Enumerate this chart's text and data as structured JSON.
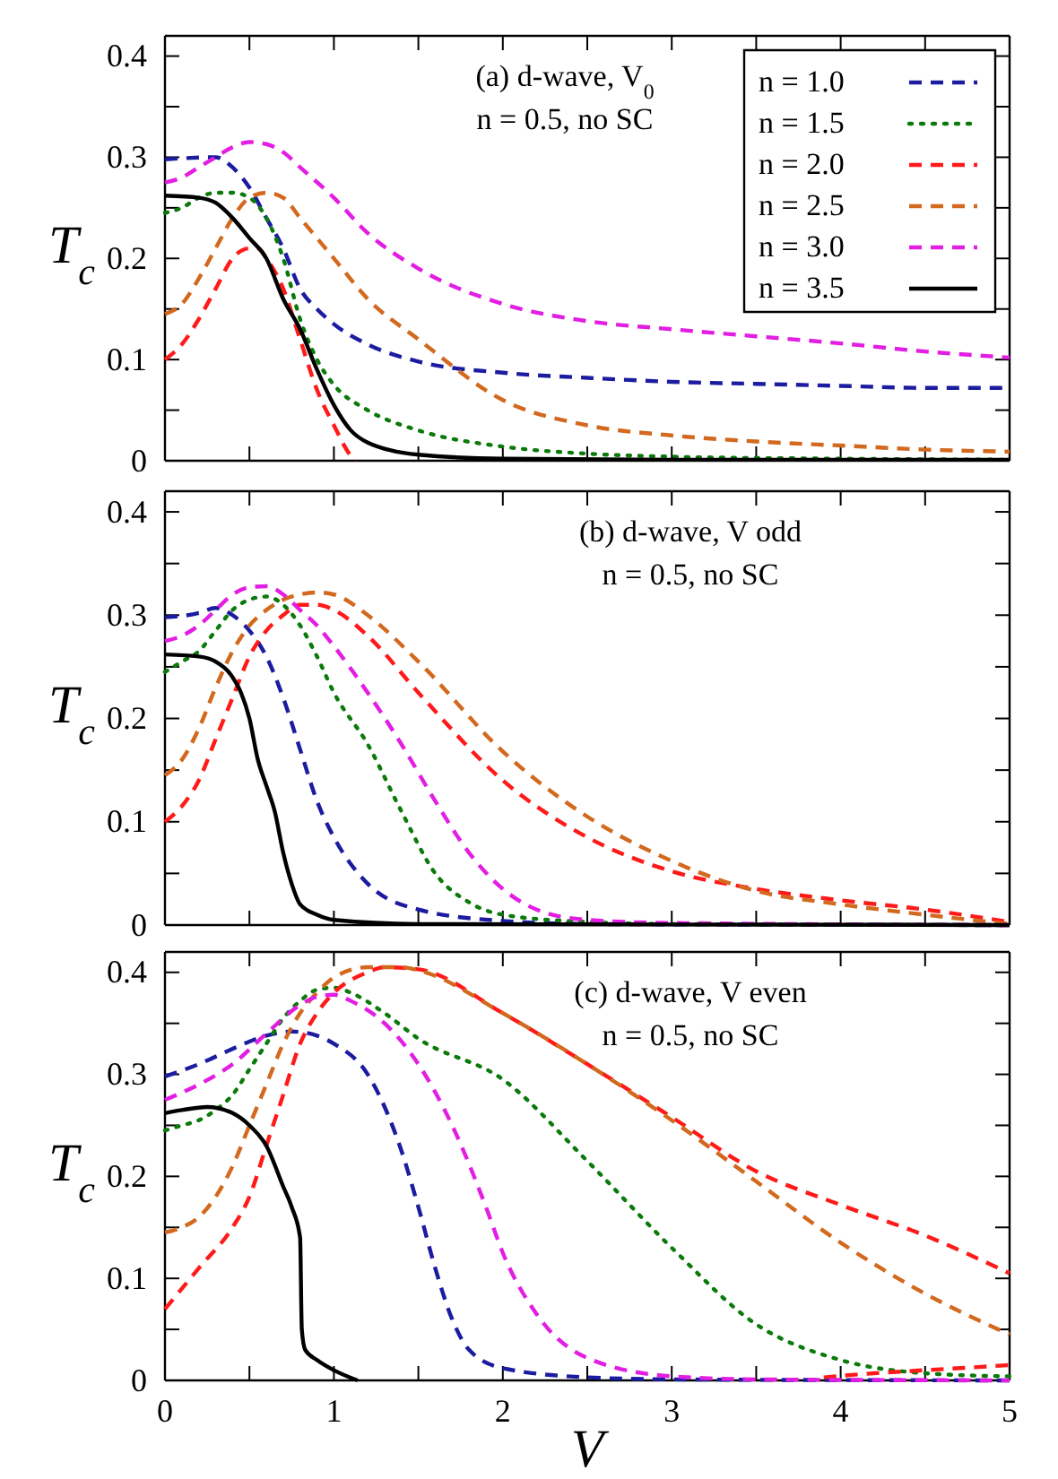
{
  "chart_data": [
    {
      "type": "line",
      "ylabel": "T$_{c}$",
      "annotations": [
        "(a) d-wave, V$_{0}$",
        "n = 0.5, no SC"
      ],
      "legend": "top right",
      "tick_labels": "y",
      "xlim": [
        0,
        5
      ],
      "ylim": [
        0,
        0.42
      ],
      "xticks": [
        {
          "value": 0,
          "label": null
        },
        {
          "value": 0.5,
          "label": null
        },
        {
          "value": 1,
          "label": null
        },
        {
          "value": 1.5,
          "label": null
        },
        {
          "value": 2,
          "label": null
        },
        {
          "value": 2.5,
          "label": null
        },
        {
          "value": 3,
          "label": null
        },
        {
          "value": 3.5,
          "label": null
        },
        {
          "value": 4,
          "label": null
        },
        {
          "value": 4.5,
          "label": null
        },
        {
          "value": 5,
          "label": null
        }
      ],
      "yticks": [
        0,
        {
          "value": 0.05,
          "label": null
        },
        0.1,
        {
          "value": 0.15,
          "label": null
        },
        0.2,
        {
          "value": 0.25,
          "label": null
        },
        0.3,
        {
          "value": 0.35,
          "label": null
        },
        0.4
      ],
      "series": [
        {
          "name": "n = 1.0",
          "color": "#1c1ca0",
          "line_style": "dashed",
          "x": [
            0,
            0.3,
            0.4,
            0.5,
            0.6,
            0.7,
            0.8,
            0.9,
            1.0,
            1.2,
            1.5,
            2,
            2.5,
            3,
            3.5,
            4,
            4.5,
            5
          ],
          "values": [
            0.298,
            0.3,
            0.29,
            0.27,
            0.24,
            0.21,
            0.17,
            0.15,
            0.135,
            0.115,
            0.098,
            0.087,
            0.082,
            0.078,
            0.076,
            0.074,
            0.072,
            0.072
          ]
        },
        {
          "name": "n = 1.5",
          "color": "#0a7a0a",
          "line_style": "dotted",
          "x": [
            0,
            0.1,
            0.2,
            0.3,
            0.4,
            0.5,
            0.6,
            0.7,
            0.8,
            0.9,
            1.0,
            1.2,
            1.5,
            2,
            2.5,
            3,
            4,
            5
          ],
          "values": [
            0.245,
            0.25,
            0.26,
            0.265,
            0.265,
            0.26,
            0.24,
            0.2,
            0.14,
            0.1,
            0.075,
            0.05,
            0.03,
            0.014,
            0.007,
            0.004,
            0.002,
            0.001
          ]
        },
        {
          "name": "n = 2.0",
          "color": "#ff1a1a",
          "line_style": "dashed",
          "x": [
            0,
            0.1,
            0.2,
            0.3,
            0.4,
            0.5,
            0.55,
            0.6,
            0.7,
            0.8,
            0.9,
            1.0,
            1.1,
            1.13
          ],
          "values": [
            0.1,
            0.115,
            0.14,
            0.17,
            0.2,
            0.21,
            0.21,
            0.2,
            0.17,
            0.12,
            0.07,
            0.035,
            0.005,
            0
          ]
        },
        {
          "name": "n = 2.5",
          "color": "#d2691e",
          "line_style": "dashed",
          "x": [
            0,
            0.1,
            0.2,
            0.3,
            0.4,
            0.5,
            0.6,
            0.7,
            0.8,
            1.0,
            1.2,
            1.5,
            2,
            2.5,
            3,
            3.5,
            4,
            4.5,
            5
          ],
          "values": [
            0.145,
            0.155,
            0.18,
            0.21,
            0.24,
            0.26,
            0.265,
            0.26,
            0.24,
            0.2,
            0.16,
            0.12,
            0.06,
            0.035,
            0.025,
            0.019,
            0.015,
            0.011,
            0.009
          ]
        },
        {
          "name": "n = 3.0",
          "color": "#e21ee2",
          "line_style": "dashed",
          "x": [
            0,
            0.1,
            0.2,
            0.3,
            0.4,
            0.5,
            0.6,
            0.7,
            0.8,
            1.0,
            1.2,
            1.5,
            2,
            2.5,
            3,
            3.5,
            4,
            4.5,
            5
          ],
          "values": [
            0.275,
            0.28,
            0.29,
            0.3,
            0.31,
            0.315,
            0.313,
            0.305,
            0.29,
            0.26,
            0.225,
            0.19,
            0.155,
            0.138,
            0.13,
            0.123,
            0.116,
            0.108,
            0.102
          ]
        },
        {
          "name": "n = 3.5",
          "color": "#000000",
          "line_style": "solid",
          "x": [
            0,
            0.2,
            0.3,
            0.4,
            0.5,
            0.6,
            0.7,
            0.8,
            0.9,
            1.0,
            1.1,
            1.2,
            1.5,
            2,
            3,
            5
          ],
          "values": [
            0.262,
            0.26,
            0.255,
            0.24,
            0.22,
            0.2,
            0.16,
            0.13,
            0.09,
            0.055,
            0.03,
            0.018,
            0.006,
            0.002,
            0.001,
            0.001
          ]
        }
      ]
    },
    {
      "type": "line",
      "ylabel": "T$_{c}$",
      "annotations": [
        "(b) d-wave, V odd",
        "n = 0.5, no SC"
      ],
      "tick_labels": "y",
      "xlim": [
        0,
        5
      ],
      "ylim": [
        0,
        0.42
      ],
      "xticks": [
        {
          "value": 0,
          "label": null
        },
        {
          "value": 0.5,
          "label": null
        },
        {
          "value": 1,
          "label": null
        },
        {
          "value": 1.5,
          "label": null
        },
        {
          "value": 2,
          "label": null
        },
        {
          "value": 2.5,
          "label": null
        },
        {
          "value": 3,
          "label": null
        },
        {
          "value": 3.5,
          "label": null
        },
        {
          "value": 4,
          "label": null
        },
        {
          "value": 4.5,
          "label": null
        },
        {
          "value": 5,
          "label": null
        }
      ],
      "yticks": [
        0,
        {
          "value": 0.05,
          "label": null
        },
        0.1,
        {
          "value": 0.15,
          "label": null
        },
        0.2,
        {
          "value": 0.25,
          "label": null
        },
        0.3,
        {
          "value": 0.35,
          "label": null
        },
        0.4
      ],
      "series": [
        {
          "color": "#1c1ca0",
          "line_style": "dashed",
          "x": [
            0,
            0.2,
            0.3,
            0.4,
            0.5,
            0.6,
            0.7,
            0.8,
            0.9,
            1.0,
            1.2,
            1.5,
            2,
            2.5,
            5
          ],
          "values": [
            0.298,
            0.302,
            0.307,
            0.3,
            0.285,
            0.26,
            0.22,
            0.17,
            0.12,
            0.085,
            0.04,
            0.015,
            0.004,
            0.001,
            0
          ]
        },
        {
          "color": "#0a7a0a",
          "line_style": "dotted",
          "x": [
            0,
            0.1,
            0.2,
            0.3,
            0.4,
            0.5,
            0.6,
            0.7,
            0.8,
            0.9,
            1.0,
            1.2,
            1.4,
            1.6,
            1.8,
            2,
            2.5,
            3,
            5
          ],
          "values": [
            0.245,
            0.255,
            0.265,
            0.285,
            0.305,
            0.315,
            0.318,
            0.31,
            0.29,
            0.26,
            0.225,
            0.175,
            0.11,
            0.05,
            0.022,
            0.01,
            0.003,
            0.001,
            0
          ]
        },
        {
          "color": "#ff1a1a",
          "line_style": "dashed",
          "x": [
            0,
            0.1,
            0.2,
            0.3,
            0.4,
            0.5,
            0.6,
            0.7,
            0.8,
            0.9,
            1.0,
            1.2,
            1.5,
            2,
            2.5,
            3,
            3.5,
            4,
            4.5,
            5
          ],
          "values": [
            0.1,
            0.115,
            0.14,
            0.18,
            0.22,
            0.26,
            0.285,
            0.3,
            0.31,
            0.31,
            0.305,
            0.28,
            0.225,
            0.14,
            0.085,
            0.052,
            0.035,
            0.024,
            0.015,
            0.003
          ]
        },
        {
          "color": "#d2691e",
          "line_style": "dashed",
          "x": [
            0,
            0.1,
            0.2,
            0.3,
            0.4,
            0.5,
            0.6,
            0.7,
            0.8,
            0.9,
            1.0,
            1.2,
            1.5,
            2,
            2.5,
            3,
            3.5,
            4,
            4.5,
            5
          ],
          "values": [
            0.145,
            0.16,
            0.19,
            0.23,
            0.265,
            0.29,
            0.305,
            0.315,
            0.32,
            0.322,
            0.32,
            0.3,
            0.255,
            0.168,
            0.105,
            0.062,
            0.033,
            0.02,
            0.01,
            0.001
          ]
        },
        {
          "color": "#e21ee2",
          "line_style": "dashed",
          "x": [
            0,
            0.1,
            0.2,
            0.3,
            0.4,
            0.5,
            0.6,
            0.7,
            0.8,
            0.9,
            1.0,
            1.2,
            1.4,
            1.6,
            1.8,
            2.0,
            2.2,
            2.5,
            3,
            5
          ],
          "values": [
            0.275,
            0.28,
            0.29,
            0.305,
            0.32,
            0.327,
            0.328,
            0.32,
            0.305,
            0.29,
            0.27,
            0.225,
            0.175,
            0.12,
            0.07,
            0.035,
            0.015,
            0.005,
            0.002,
            0
          ]
        },
        {
          "color": "#000000",
          "line_style": "solid",
          "x": [
            0,
            0.2,
            0.3,
            0.4,
            0.45,
            0.5,
            0.55,
            0.6,
            0.65,
            0.7,
            0.75,
            0.8,
            0.9,
            1.0,
            1.5,
            5
          ],
          "values": [
            0.262,
            0.26,
            0.255,
            0.24,
            0.225,
            0.2,
            0.16,
            0.135,
            0.11,
            0.07,
            0.04,
            0.02,
            0.01,
            0.005,
            0.001,
            0
          ]
        }
      ]
    },
    {
      "type": "line",
      "xlabel": "V",
      "ylabel": "T$_{c}$",
      "annotations": [
        "(c) d-wave, V even",
        "n = 0.5, no SC"
      ],
      "xlim": [
        0,
        5
      ],
      "ylim": [
        0,
        0.42
      ],
      "xticks": [
        0,
        {
          "value": 0.5,
          "label": null
        },
        1,
        {
          "value": 1.5,
          "label": null
        },
        2,
        {
          "value": 2.5,
          "label": null
        },
        3,
        {
          "value": 3.5,
          "label": null
        },
        4,
        {
          "value": 4.5,
          "label": null
        },
        5
      ],
      "yticks": [
        0,
        {
          "value": 0.05,
          "label": null
        },
        0.1,
        {
          "value": 0.15,
          "label": null
        },
        0.2,
        {
          "value": 0.25,
          "label": null
        },
        0.3,
        {
          "value": 0.35,
          "label": null
        },
        0.4
      ],
      "series": [
        {
          "color": "#1c1ca0",
          "line_style": "dashed",
          "x": [
            0,
            0.2,
            0.4,
            0.6,
            0.75,
            0.9,
            1.0,
            1.2,
            1.4,
            1.5,
            1.6,
            1.7,
            1.8,
            2,
            2.5,
            3,
            5
          ],
          "values": [
            0.298,
            0.31,
            0.325,
            0.338,
            0.342,
            0.338,
            0.33,
            0.3,
            0.225,
            0.17,
            0.11,
            0.06,
            0.03,
            0.012,
            0.003,
            0.001,
            0
          ]
        },
        {
          "color": "#0a7a0a",
          "line_style": "dotted",
          "x": [
            0,
            0.1,
            0.2,
            0.3,
            0.4,
            0.5,
            0.6,
            0.7,
            0.8,
            0.9,
            1.0,
            1.1,
            1.3,
            1.5,
            2,
            2.5,
            3,
            3.5,
            4,
            4.5,
            5
          ],
          "values": [
            0.245,
            0.25,
            0.255,
            0.265,
            0.28,
            0.305,
            0.33,
            0.355,
            0.372,
            0.383,
            0.385,
            0.38,
            0.36,
            0.335,
            0.295,
            0.215,
            0.13,
            0.055,
            0.02,
            0.007,
            0.004
          ]
        },
        {
          "color": "#ff1a1a",
          "line_style": "dashed",
          "x": [
            0,
            0.2,
            0.4,
            0.5,
            0.6,
            0.7,
            0.8,
            0.9,
            1.0,
            1.2,
            1.3,
            1.5,
            2,
            2.5,
            3,
            3.5,
            4,
            4.5,
            5
          ],
          "values": [
            0.07,
            0.11,
            0.15,
            0.18,
            0.23,
            0.28,
            0.33,
            0.36,
            0.38,
            0.4,
            0.405,
            0.403,
            0.36,
            0.31,
            0.258,
            0.205,
            0.172,
            0.142,
            0.105
          ]
        },
        {
          "color": "#ff1a1a",
          "line_style": "dashed",
          "x": [
            3.9,
            4.2,
            4.5,
            5
          ],
          "values": [
            0.003,
            0.007,
            0.01,
            0.015
          ]
        },
        {
          "color": "#d2691e",
          "line_style": "dashed",
          "x": [
            0,
            0.1,
            0.2,
            0.3,
            0.4,
            0.5,
            0.6,
            0.7,
            0.8,
            0.9,
            1.0,
            1.2,
            1.4,
            1.5,
            2,
            2.5,
            3,
            3.5,
            4,
            4.5,
            5
          ],
          "values": [
            0.145,
            0.15,
            0.16,
            0.18,
            0.21,
            0.25,
            0.29,
            0.33,
            0.36,
            0.38,
            0.395,
            0.405,
            0.405,
            0.402,
            0.36,
            0.31,
            0.255,
            0.195,
            0.135,
            0.085,
            0.045
          ]
        },
        {
          "color": "#e21ee2",
          "line_style": "dashed",
          "x": [
            0,
            0.2,
            0.4,
            0.6,
            0.8,
            0.9,
            1.0,
            1.1,
            1.3,
            1.5,
            1.7,
            1.9,
            2.0,
            2.2,
            2.5,
            3,
            3.5,
            5
          ],
          "values": [
            0.275,
            0.29,
            0.31,
            0.34,
            0.368,
            0.376,
            0.378,
            0.372,
            0.35,
            0.31,
            0.25,
            0.17,
            0.125,
            0.065,
            0.022,
            0.004,
            0.001,
            0
          ]
        },
        {
          "color": "#000000",
          "line_style": "solid",
          "x": [
            0,
            0.1,
            0.25,
            0.4,
            0.5,
            0.6,
            0.7,
            0.75,
            0.8,
            0.81,
            0.83,
            0.9,
            1.0,
            1.14
          ],
          "values": [
            0.262,
            0.265,
            0.268,
            0.262,
            0.25,
            0.23,
            0.19,
            0.17,
            0.14,
            0.05,
            0.03,
            0.02,
            0.01,
            0
          ]
        }
      ]
    }
  ]
}
